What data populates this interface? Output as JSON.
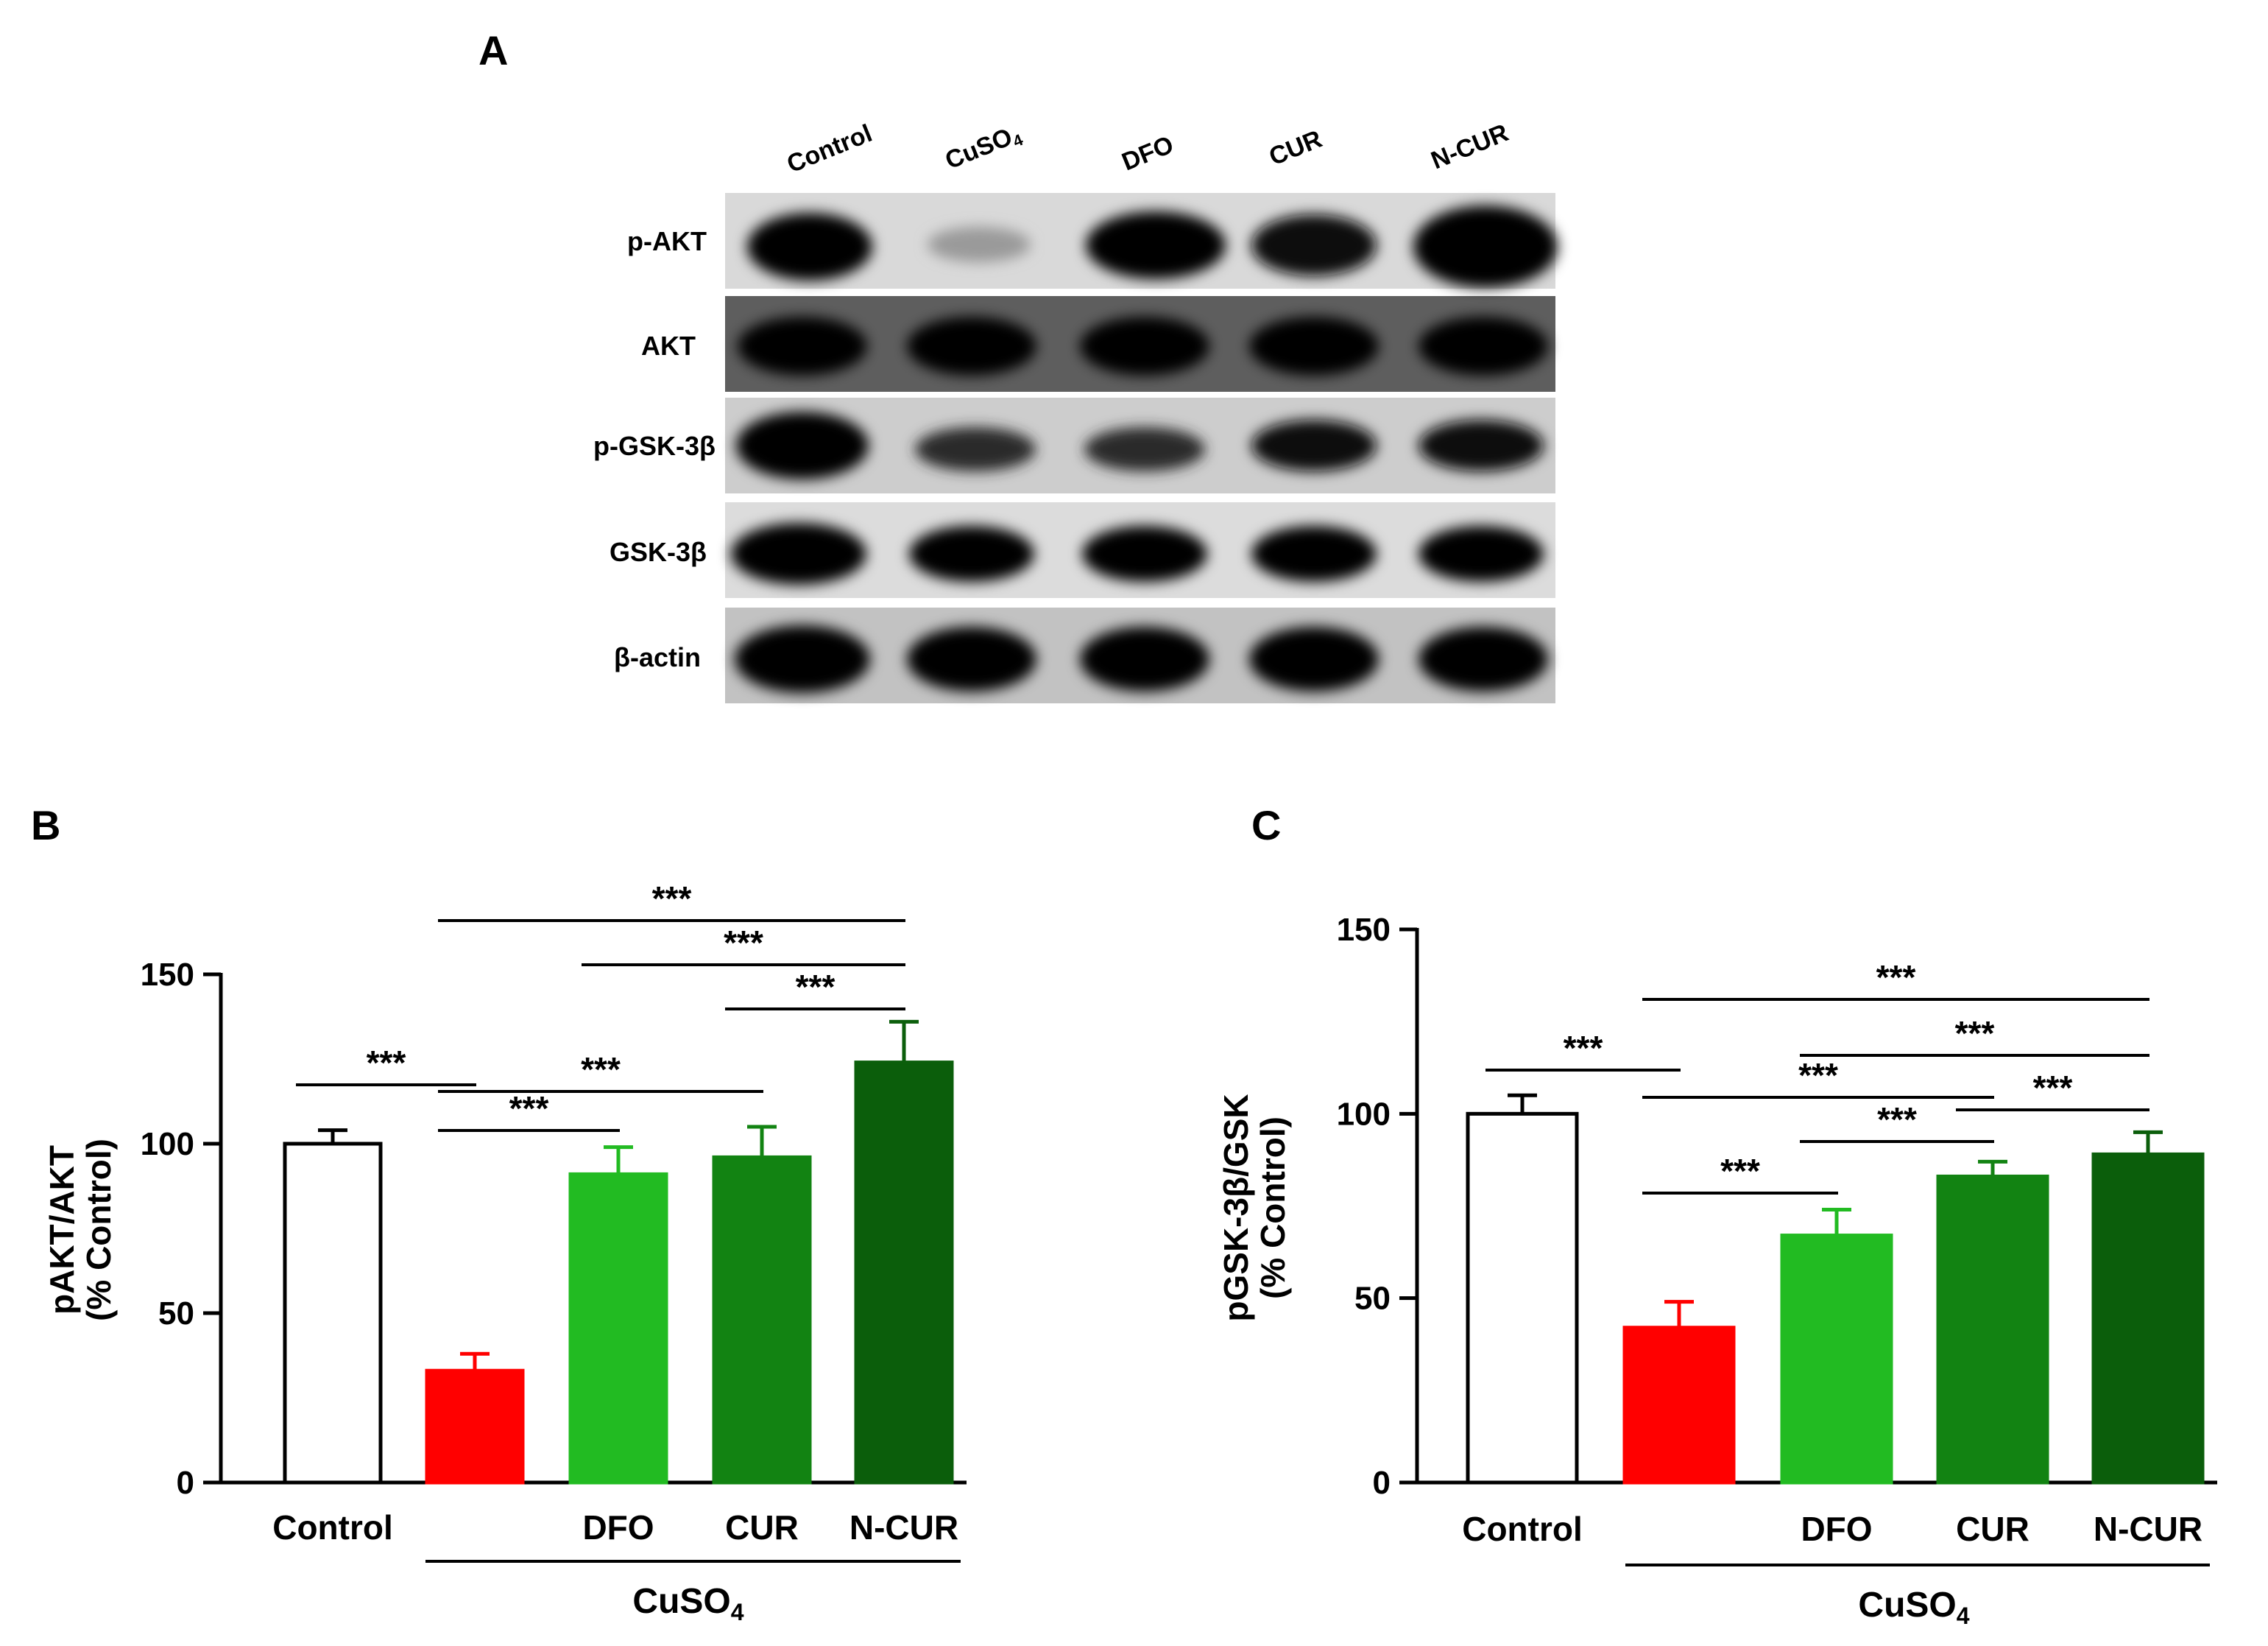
{
  "panel_labels": {
    "a": "A",
    "b": "B",
    "c": "C"
  },
  "blot": {
    "lanes": [
      "Control",
      "CuSO4",
      "DFO",
      "CUR",
      "N-CUR"
    ],
    "lane_cuso4": {
      "base": "CuSO",
      "sub": "4"
    },
    "rows": [
      "p-AKT",
      "AKT",
      "p-GSK-3β",
      "GSK-3β",
      "β-actin"
    ]
  },
  "group_label": {
    "base": "CuSO",
    "sub": "4"
  },
  "significance": "***",
  "chart_data": [
    {
      "type": "bar",
      "panel": "B",
      "categories": [
        "Control",
        "",
        "DFO",
        "CUR",
        "N-CUR"
      ],
      "values": [
        100,
        33,
        91,
        96,
        124
      ],
      "errors": [
        4,
        5,
        8,
        9,
        12
      ],
      "colors": [
        "#ffffff",
        "#ff0000",
        "#22bb22",
        "#128312",
        "#0b5e0b"
      ],
      "ylabel_line1": "pAKT/AKT",
      "ylabel_line2": "(% Control)",
      "ylim": [
        0,
        150
      ],
      "yticks": [
        0,
        50,
        100,
        150
      ],
      "group_label": "CuSO4",
      "comparisons": [
        {
          "from": 0,
          "to": 1,
          "label": "***"
        },
        {
          "from": 1,
          "to": 2,
          "label": "***"
        },
        {
          "from": 1,
          "to": 3,
          "label": "***"
        },
        {
          "from": 3,
          "to": 4,
          "label": "***"
        },
        {
          "from": 2,
          "to": 4,
          "label": "***"
        },
        {
          "from": 1,
          "to": 4,
          "label": "***"
        }
      ]
    },
    {
      "type": "bar",
      "panel": "C",
      "categories": [
        "Control",
        "",
        "DFO",
        "CUR",
        "N-CUR"
      ],
      "values": [
        100,
        42,
        67,
        83,
        89
      ],
      "errors": [
        5,
        7,
        7,
        4,
        6
      ],
      "colors": [
        "#ffffff",
        "#ff0000",
        "#22bb22",
        "#128312",
        "#0b5e0b"
      ],
      "ylabel_line1": "pGSK-3β/GSK",
      "ylabel_line2": "(% Control)",
      "ylim": [
        0,
        150
      ],
      "yticks": [
        0,
        50,
        100,
        150
      ],
      "group_label": "CuSO4",
      "comparisons": [
        {
          "from": 0,
          "to": 1,
          "label": "***"
        },
        {
          "from": 1,
          "to": 2,
          "label": "***"
        },
        {
          "from": 2,
          "to": 3,
          "label": "***"
        },
        {
          "from": 3,
          "to": 4,
          "label": "***"
        },
        {
          "from": 1,
          "to": 3,
          "label": "***"
        },
        {
          "from": 2,
          "to": 4,
          "label": "***"
        },
        {
          "from": 1,
          "to": 4,
          "label": "***"
        }
      ]
    }
  ]
}
